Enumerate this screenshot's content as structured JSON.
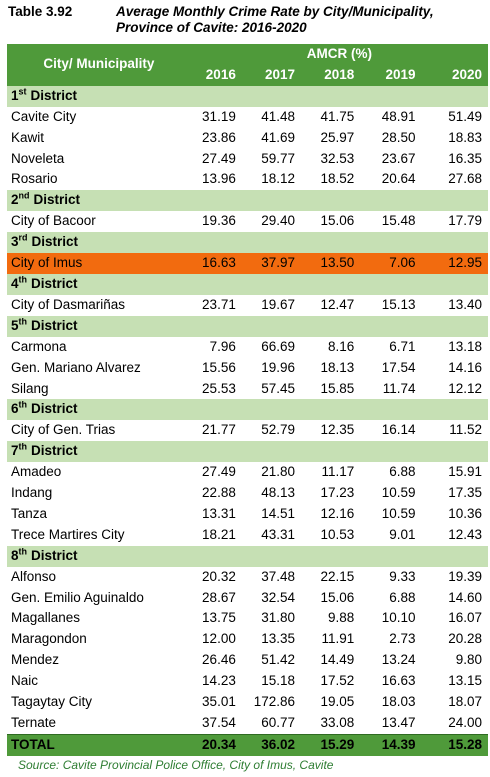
{
  "header": {
    "table_no": "Table 3.92",
    "title": "Average Monthly Crime Rate by City/Municipality, Province of Cavite: 2016-2020"
  },
  "table": {
    "columns": {
      "name": "City/ Municipality",
      "group": "AMCR (%)",
      "years": [
        "2016",
        "2017",
        "2018",
        "2019",
        "2020"
      ]
    },
    "sections": [
      {
        "ordinal": "1",
        "suffix": "st",
        "label": "District",
        "rows": [
          {
            "name": "Cavite City",
            "values": [
              "31.19",
              "41.48",
              "41.75",
              "48.91",
              "51.49"
            ]
          },
          {
            "name": "Kawit",
            "values": [
              "23.86",
              "41.69",
              "25.97",
              "28.50",
              "18.83"
            ]
          },
          {
            "name": "Noveleta",
            "values": [
              "27.49",
              "59.77",
              "32.53",
              "23.67",
              "16.35"
            ]
          },
          {
            "name": "Rosario",
            "values": [
              "13.96",
              "18.12",
              "18.52",
              "20.64",
              "27.68"
            ]
          }
        ]
      },
      {
        "ordinal": "2",
        "suffix": "nd",
        "label": "District",
        "rows": [
          {
            "name": "City of Bacoor",
            "values": [
              "19.36",
              "29.40",
              "15.06",
              "15.48",
              "17.79"
            ]
          }
        ]
      },
      {
        "ordinal": "3",
        "suffix": "rd",
        "label": "District",
        "rows": [
          {
            "name": "City of Imus",
            "values": [
              "16.63",
              "37.97",
              "13.50",
              "7.06",
              "12.95"
            ],
            "highlight": true
          }
        ]
      },
      {
        "ordinal": "4",
        "suffix": "th",
        "label": "District",
        "rows": [
          {
            "name": "City of Dasmariñas",
            "values": [
              "23.71",
              "19.67",
              "12.47",
              "15.13",
              "13.40"
            ]
          }
        ]
      },
      {
        "ordinal": "5",
        "suffix": "th",
        "label": "District",
        "rows": [
          {
            "name": "Carmona",
            "values": [
              "7.96",
              "66.69",
              "8.16",
              "6.71",
              "13.18"
            ]
          },
          {
            "name": "Gen. Mariano Alvarez",
            "values": [
              "15.56",
              "19.96",
              "18.13",
              "17.54",
              "14.16"
            ]
          },
          {
            "name": "Silang",
            "values": [
              "25.53",
              "57.45",
              "15.85",
              "11.74",
              "12.12"
            ]
          }
        ]
      },
      {
        "ordinal": "6",
        "suffix": "th",
        "label": "District",
        "rows": [
          {
            "name": "City of Gen. Trias",
            "values": [
              "21.77",
              "52.79",
              "12.35",
              "16.14",
              "11.52"
            ]
          }
        ]
      },
      {
        "ordinal": "7",
        "suffix": "th",
        "label": "District",
        "rows": [
          {
            "name": "Amadeo",
            "values": [
              "27.49",
              "21.80",
              "11.17",
              "6.88",
              "15.91"
            ]
          },
          {
            "name": "Indang",
            "values": [
              "22.88",
              "48.13",
              "17.23",
              "10.59",
              "17.35"
            ]
          },
          {
            "name": "Tanza",
            "values": [
              "13.31",
              "14.51",
              "12.16",
              "10.59",
              "10.36"
            ]
          },
          {
            "name": "Trece Martires City",
            "values": [
              "18.21",
              "43.31",
              "10.53",
              "9.01",
              "12.43"
            ]
          }
        ]
      },
      {
        "ordinal": "8",
        "suffix": "th",
        "label": "District",
        "rows": [
          {
            "name": "Alfonso",
            "values": [
              "20.32",
              "37.48",
              "22.15",
              "9.33",
              "19.39"
            ]
          },
          {
            "name": "Gen. Emilio Aguinaldo",
            "values": [
              "28.67",
              "32.54",
              "15.06",
              "6.88",
              "14.60"
            ]
          },
          {
            "name": "Magallanes",
            "values": [
              "13.75",
              "31.80",
              "9.88",
              "10.10",
              "16.07"
            ]
          },
          {
            "name": "Maragondon",
            "values": [
              "12.00",
              "13.35",
              "11.91",
              "2.73",
              "20.28"
            ]
          },
          {
            "name": "Mendez",
            "values": [
              "26.46",
              "51.42",
              "14.49",
              "13.24",
              "9.80"
            ]
          },
          {
            "name": "Naic",
            "values": [
              "14.23",
              "15.18",
              "17.52",
              "16.63",
              "13.15"
            ]
          },
          {
            "name": "Tagaytay City",
            "values": [
              "35.01",
              "172.86",
              "19.05",
              "18.03",
              "18.07"
            ]
          },
          {
            "name": "Ternate",
            "values": [
              "37.54",
              "60.77",
              "33.08",
              "13.47",
              "24.00"
            ]
          }
        ]
      }
    ],
    "total": {
      "name": "TOTAL",
      "values": [
        "20.34",
        "36.02",
        "15.29",
        "14.39",
        "15.28"
      ]
    }
  },
  "source": "Source: Cavite Provincial Police Office, City of Imus, Cavite"
}
